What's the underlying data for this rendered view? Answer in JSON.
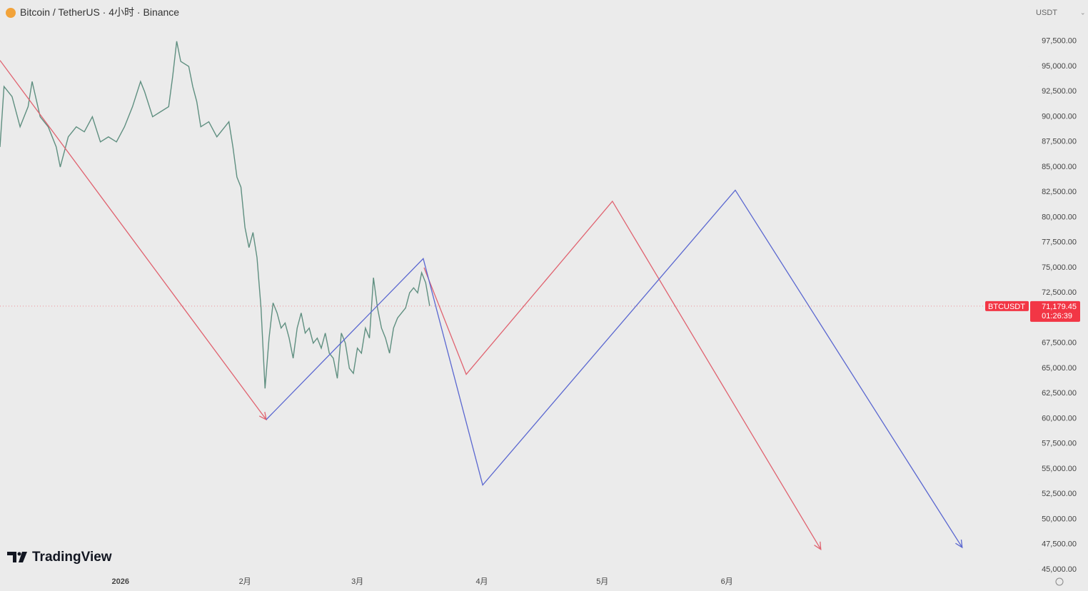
{
  "chart_data": {
    "type": "line",
    "header": {
      "symbol": "Bitcoin / TetherUS",
      "interval": "4小时",
      "exchange": "Binance",
      "currency": "USDT"
    },
    "brand": "TradingView",
    "xlim": [
      -30,
      226
    ],
    "xticks": [
      {
        "value": 0,
        "label": "2026"
      },
      {
        "value": 31,
        "label": "2月"
      },
      {
        "value": 59,
        "label": "3月"
      },
      {
        "value": 90,
        "label": "4月"
      },
      {
        "value": 120,
        "label": "5月"
      },
      {
        "value": 151,
        "label": "6月"
      }
    ],
    "ylim": [
      44500,
      101600
    ],
    "yticks": [
      {
        "value": 45000,
        "label": "45,000.00"
      },
      {
        "value": 47500,
        "label": "47,500.00"
      },
      {
        "value": 50000,
        "label": "50,000.00"
      },
      {
        "value": 52500,
        "label": "52,500.00"
      },
      {
        "value": 55000,
        "label": "55,000.00"
      },
      {
        "value": 57500,
        "label": "57,500.00"
      },
      {
        "value": 60000,
        "label": "60,000.00"
      },
      {
        "value": 62500,
        "label": "62,500.00"
      },
      {
        "value": 65000,
        "label": "65,000.00"
      },
      {
        "value": 67500,
        "label": "67,500.00"
      },
      {
        "value": 72500,
        "label": "72,500.00"
      },
      {
        "value": 75000,
        "label": "75,000.00"
      },
      {
        "value": 77500,
        "label": "77,500.00"
      },
      {
        "value": 80000,
        "label": "80,000.00"
      },
      {
        "value": 82500,
        "label": "82,500.00"
      },
      {
        "value": 85000,
        "label": "85,000.00"
      },
      {
        "value": 87500,
        "label": "87,500.00"
      },
      {
        "value": 90000,
        "label": "90,000.00"
      },
      {
        "value": 92500,
        "label": "92,500.00"
      },
      {
        "value": 95000,
        "label": "95,000.00"
      },
      {
        "value": 97500,
        "label": "97,500.00"
      }
    ],
    "last_price": {
      "ticker": "BTCUSDT",
      "value": 71179.45,
      "label": "71,179.45",
      "countdown": "01:26:39",
      "color": "#f23645"
    },
    "series": [
      {
        "color": "#5f8f80",
        "arrow": false,
        "x": [
          -30,
          -29,
          -27,
          -25,
          -23,
          -22,
          -20,
          -18,
          -16,
          -15,
          -13,
          -11,
          -9,
          -7,
          -5,
          -3,
          -1,
          1,
          3,
          5,
          6,
          8,
          10,
          12,
          13,
          14,
          15,
          17,
          18,
          19,
          20,
          22,
          24,
          26,
          27,
          28,
          29,
          30,
          31,
          32,
          33,
          34,
          35,
          36,
          37,
          38,
          39,
          40,
          41,
          42,
          43,
          44,
          45,
          46,
          47,
          48,
          49,
          50,
          51,
          52,
          53,
          54,
          55,
          56,
          57,
          58,
          59,
          60,
          61,
          62,
          63,
          64,
          65,
          66,
          67,
          68,
          69,
          70,
          71,
          72,
          73,
          74,
          75,
          76,
          77
        ],
        "values": [
          87000,
          93000,
          92000,
          89000,
          91000,
          93500,
          90000,
          89000,
          87000,
          85000,
          88000,
          89000,
          88500,
          90000,
          87500,
          88000,
          87500,
          89000,
          91000,
          93500,
          92500,
          90000,
          90500,
          91000,
          94000,
          97500,
          95500,
          95000,
          93000,
          91500,
          89000,
          89500,
          88000,
          89000,
          89500,
          87000,
          84000,
          83000,
          79000,
          77000,
          78500,
          76000,
          71000,
          63000,
          68000,
          71500,
          70500,
          69000,
          69500,
          68000,
          66000,
          69000,
          70500,
          68500,
          69000,
          67500,
          68000,
          67000,
          68500,
          66500,
          66000,
          64000,
          68500,
          67500,
          65000,
          64500,
          67000,
          66500,
          69000,
          68000,
          74000,
          71000,
          69000,
          68000,
          66500,
          69000,
          70000,
          70500,
          71000,
          72500,
          73000,
          72500,
          74500,
          73500,
          71200
        ]
      },
      {
        "color": "#e0626f",
        "arrow": true,
        "x": [
          -30,
          36.3,
          null,
          75.6,
          86.1,
          122.5,
          174.4
        ],
        "values": [
          95600,
          59900,
          null,
          75000,
          64400,
          81600,
          47000
        ]
      },
      {
        "color": "#5a67d0",
        "arrow": true,
        "x": [
          36.3,
          75.4,
          90.2,
          153.1,
          209.6
        ],
        "values": [
          59900,
          75900,
          53400,
          82700,
          47200
        ]
      }
    ]
  }
}
